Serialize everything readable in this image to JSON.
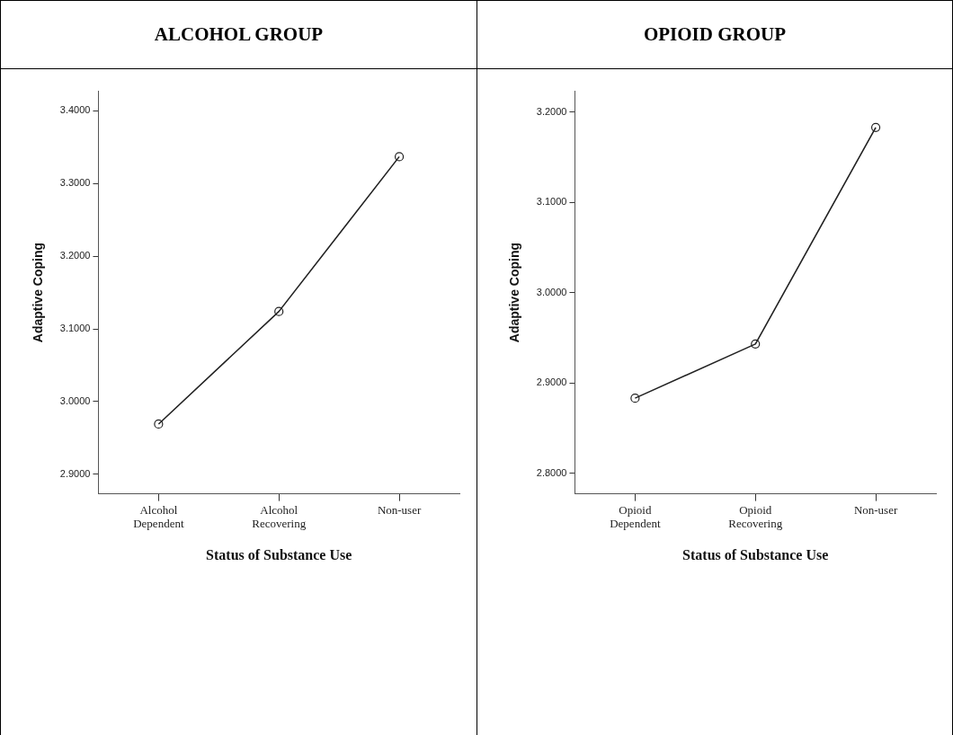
{
  "chart_data": [
    {
      "type": "line",
      "title": "ALCOHOL GROUP",
      "xlabel": "Status of Substance Use",
      "ylabel": "Adaptive Coping",
      "categories": [
        "Alcohol Dependent",
        "Alcohol Recovering",
        "Non-user"
      ],
      "series": [
        {
          "color": "#222222",
          "values": [
            2.969,
            3.124,
            3.337
          ]
        }
      ],
      "ylim": [
        2.873,
        3.427
      ],
      "yticks": [
        {
          "value": 2.9,
          "label": "2.9000"
        },
        {
          "value": 3.0,
          "label": "3.0000"
        },
        {
          "value": 3.1,
          "label": "3.1000"
        },
        {
          "value": 3.2,
          "label": "3.2000"
        },
        {
          "value": 3.3,
          "label": "3.3000"
        },
        {
          "value": 3.4,
          "label": "3.4000"
        }
      ],
      "marker": "circle",
      "line_style": "solid",
      "grid": false,
      "legend": false
    },
    {
      "type": "line",
      "title": "OPIOID GROUP",
      "xlabel": "Status of Substance Use",
      "ylabel": "Adaptive Coping",
      "categories": [
        "Opioid Dependent",
        "Opioid Recovering",
        "Non-user"
      ],
      "series": [
        {
          "color": "#222222",
          "values": [
            2.883,
            2.943,
            3.183
          ]
        }
      ],
      "ylim": [
        2.777,
        3.223
      ],
      "yticks": [
        {
          "value": 2.8,
          "label": "2.8000"
        },
        {
          "value": 2.9,
          "label": "2.9000"
        },
        {
          "value": 3.0,
          "label": "3.0000"
        },
        {
          "value": 3.1,
          "label": "3.1000"
        },
        {
          "value": 3.2,
          "label": "3.2000"
        }
      ],
      "marker": "circle",
      "line_style": "solid",
      "grid": false,
      "legend": false
    }
  ]
}
